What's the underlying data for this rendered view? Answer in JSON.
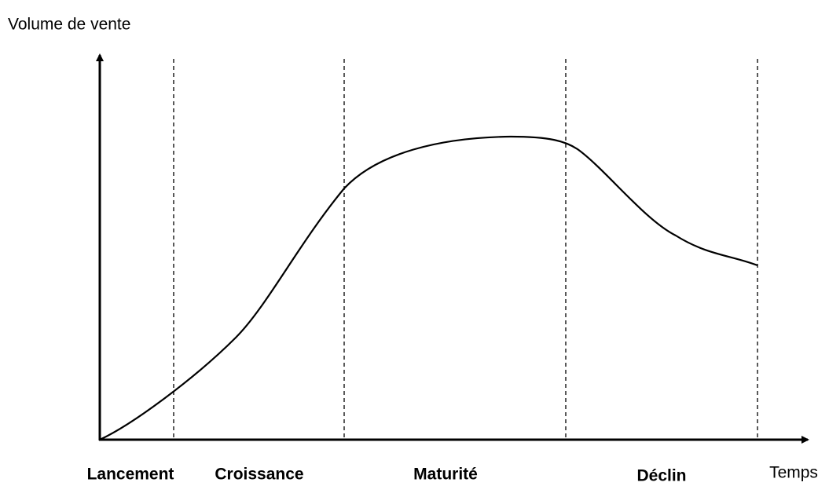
{
  "y_axis_label": "Volume de vente",
  "x_axis_label": "Temps",
  "phases": [
    "Lancement",
    "Croissance",
    "Maturité",
    "Déclin"
  ]
}
